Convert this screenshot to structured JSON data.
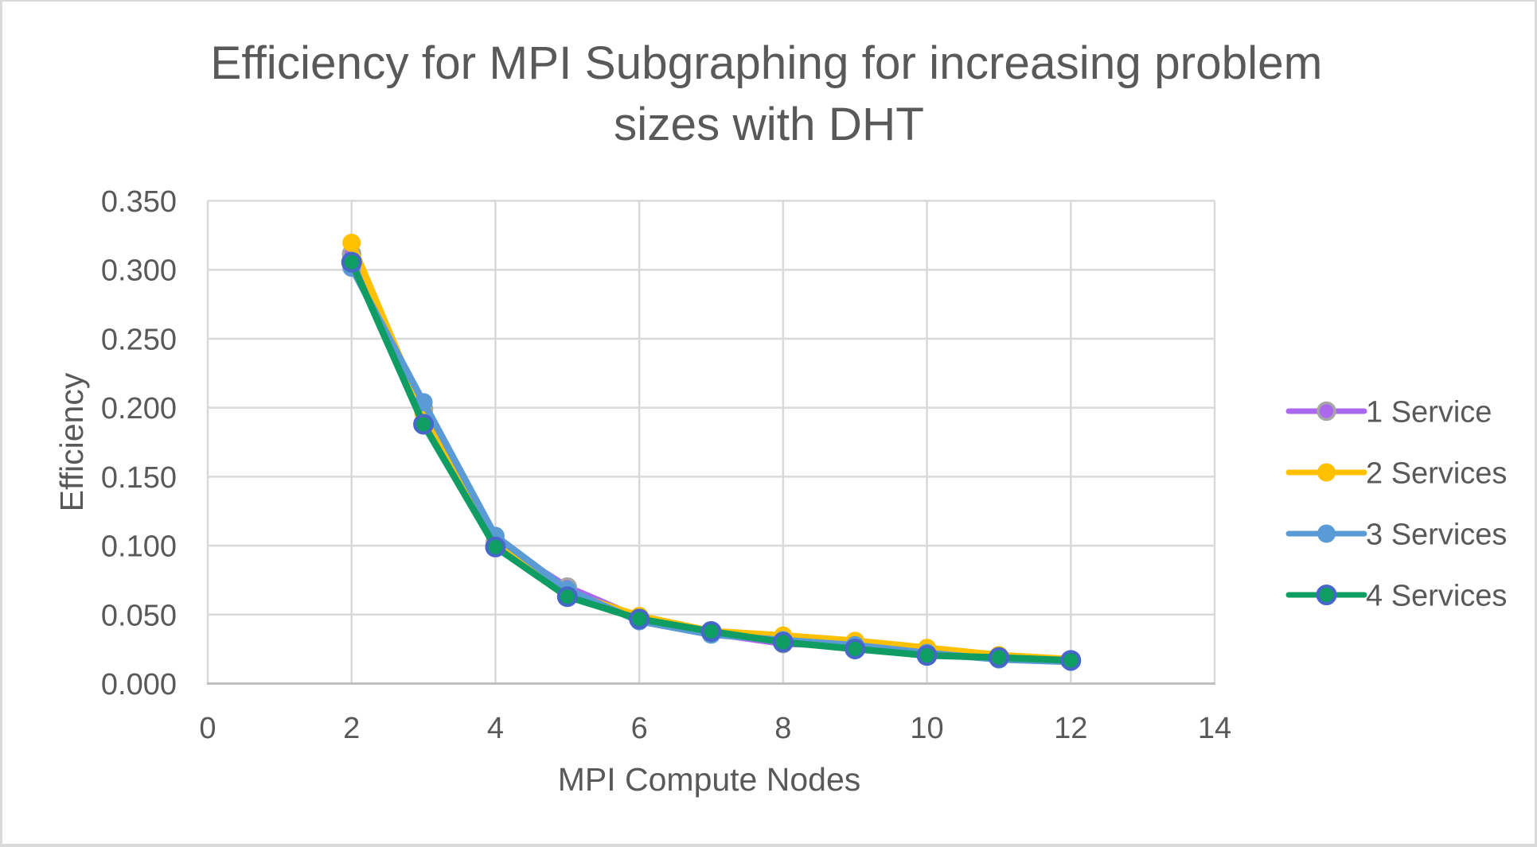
{
  "chart_data": {
    "type": "line",
    "title": "Efficiency for MPI Subgraphing for increasing problem sizes with DHT",
    "title_lines": [
      "Efficiency for MPI Subgraphing for increasing problem",
      "sizes with DHT"
    ],
    "xlabel": "MPI Compute Nodes",
    "ylabel": "Efficiency",
    "xlim": [
      0,
      14
    ],
    "ylim": [
      0.0,
      0.35
    ],
    "x_tick_labels": [
      "0",
      "2",
      "4",
      "6",
      "8",
      "10",
      "12",
      "14"
    ],
    "x_tick_values": [
      0,
      2,
      4,
      6,
      8,
      10,
      12,
      14
    ],
    "y_tick_labels": [
      "0.000",
      "0.050",
      "0.100",
      "0.150",
      "0.200",
      "0.250",
      "0.300",
      "0.350"
    ],
    "y_tick_values": [
      0.0,
      0.05,
      0.1,
      0.15,
      0.2,
      0.25,
      0.3,
      0.35
    ],
    "grid": true,
    "legend_position": "right",
    "x": [
      2,
      3,
      4,
      5,
      6,
      7,
      8,
      9,
      10,
      11,
      12
    ],
    "series": [
      {
        "name": "1 Service",
        "color": "#ab68ef",
        "marker_fill": "#ab68ef",
        "marker_border": "#a6a6a6",
        "values": [
          0.3115,
          0.199,
          0.103,
          0.07,
          0.0475,
          0.0365,
          0.029,
          0.0275,
          0.0213,
          0.018,
          0.0165
        ]
      },
      {
        "name": "2 Services",
        "color": "#ffc000",
        "marker_fill": "#ffc000",
        "marker_border": "#ffc000",
        "values": [
          0.3195,
          0.196,
          0.101,
          0.066,
          0.049,
          0.038,
          0.0348,
          0.031,
          0.0259,
          0.0206,
          0.0176
        ]
      },
      {
        "name": "3 Services",
        "color": "#5b9bd5",
        "marker_fill": "#5b9bd5",
        "marker_border": "#5b9bd5",
        "values": [
          0.3015,
          0.204,
          0.107,
          0.068,
          0.0452,
          0.0355,
          0.0315,
          0.0278,
          0.0222,
          0.0175,
          0.0158
        ]
      },
      {
        "name": "4 Services",
        "color": "#0f9d63",
        "marker_fill": "#0f9d63",
        "marker_border": "#4667c9",
        "values": [
          0.3055,
          0.188,
          0.099,
          0.063,
          0.0468,
          0.0378,
          0.03,
          0.0251,
          0.0204,
          0.0189,
          0.0168
        ]
      }
    ],
    "colors": {
      "gridline": "#d9d9d9",
      "axis_line": "#bfbfbf",
      "text": "#595959"
    }
  }
}
